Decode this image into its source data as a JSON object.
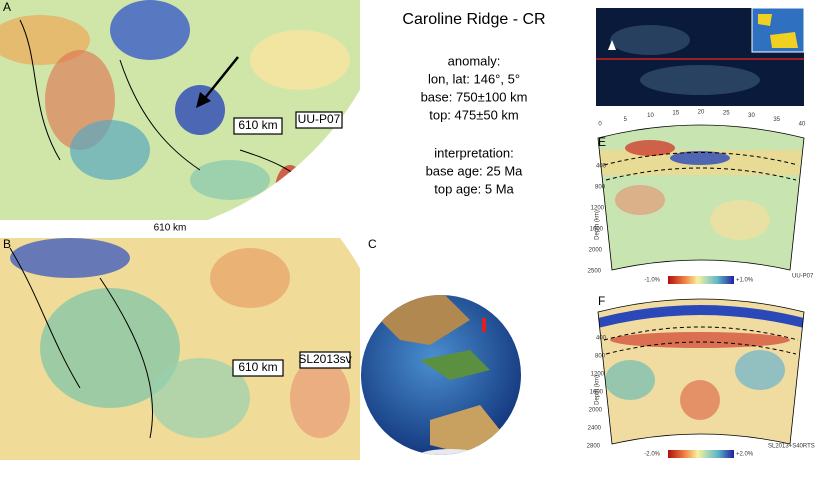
{
  "panels": {
    "a": {
      "letter": "A",
      "depth_label": "610 km",
      "model_label": "UU-P07",
      "caption": "610 km"
    },
    "b": {
      "letter": "B",
      "depth_label": "610 km",
      "model_label": "SL2013sv"
    },
    "c": {
      "letter": "C"
    },
    "e": {
      "letter": "E",
      "distance_ticks": [
        "0",
        "5",
        "10",
        "15",
        "20",
        "25",
        "30",
        "35",
        "40"
      ],
      "depth_ticks": [
        "400",
        "800",
        "1200",
        "1600",
        "2000",
        "2500"
      ],
      "axis_label": "Depth (km)",
      "scale_min": "-1.0%",
      "scale_max": "+1.0%",
      "model": "UU-P07"
    },
    "f": {
      "letter": "F",
      "depth_ticks": [
        "400",
        "800",
        "1200",
        "1600",
        "2000",
        "2400",
        "2800"
      ],
      "axis_label": "Depth (km)",
      "scale_min": "-2.0%",
      "scale_max": "+2.0%",
      "model": "SL2013+S40RTS"
    }
  },
  "info": {
    "title": "Caroline Ridge - CR",
    "anomaly_heading": "anomaly:",
    "location": "lon, lat: 146°, 5°",
    "base": "base: 750±100 km",
    "top": "top: 475±50 km",
    "interpretation_heading": "interpretation:",
    "base_age": "base age: 25 Ma",
    "top_age": "top age: 5 Ma"
  }
}
